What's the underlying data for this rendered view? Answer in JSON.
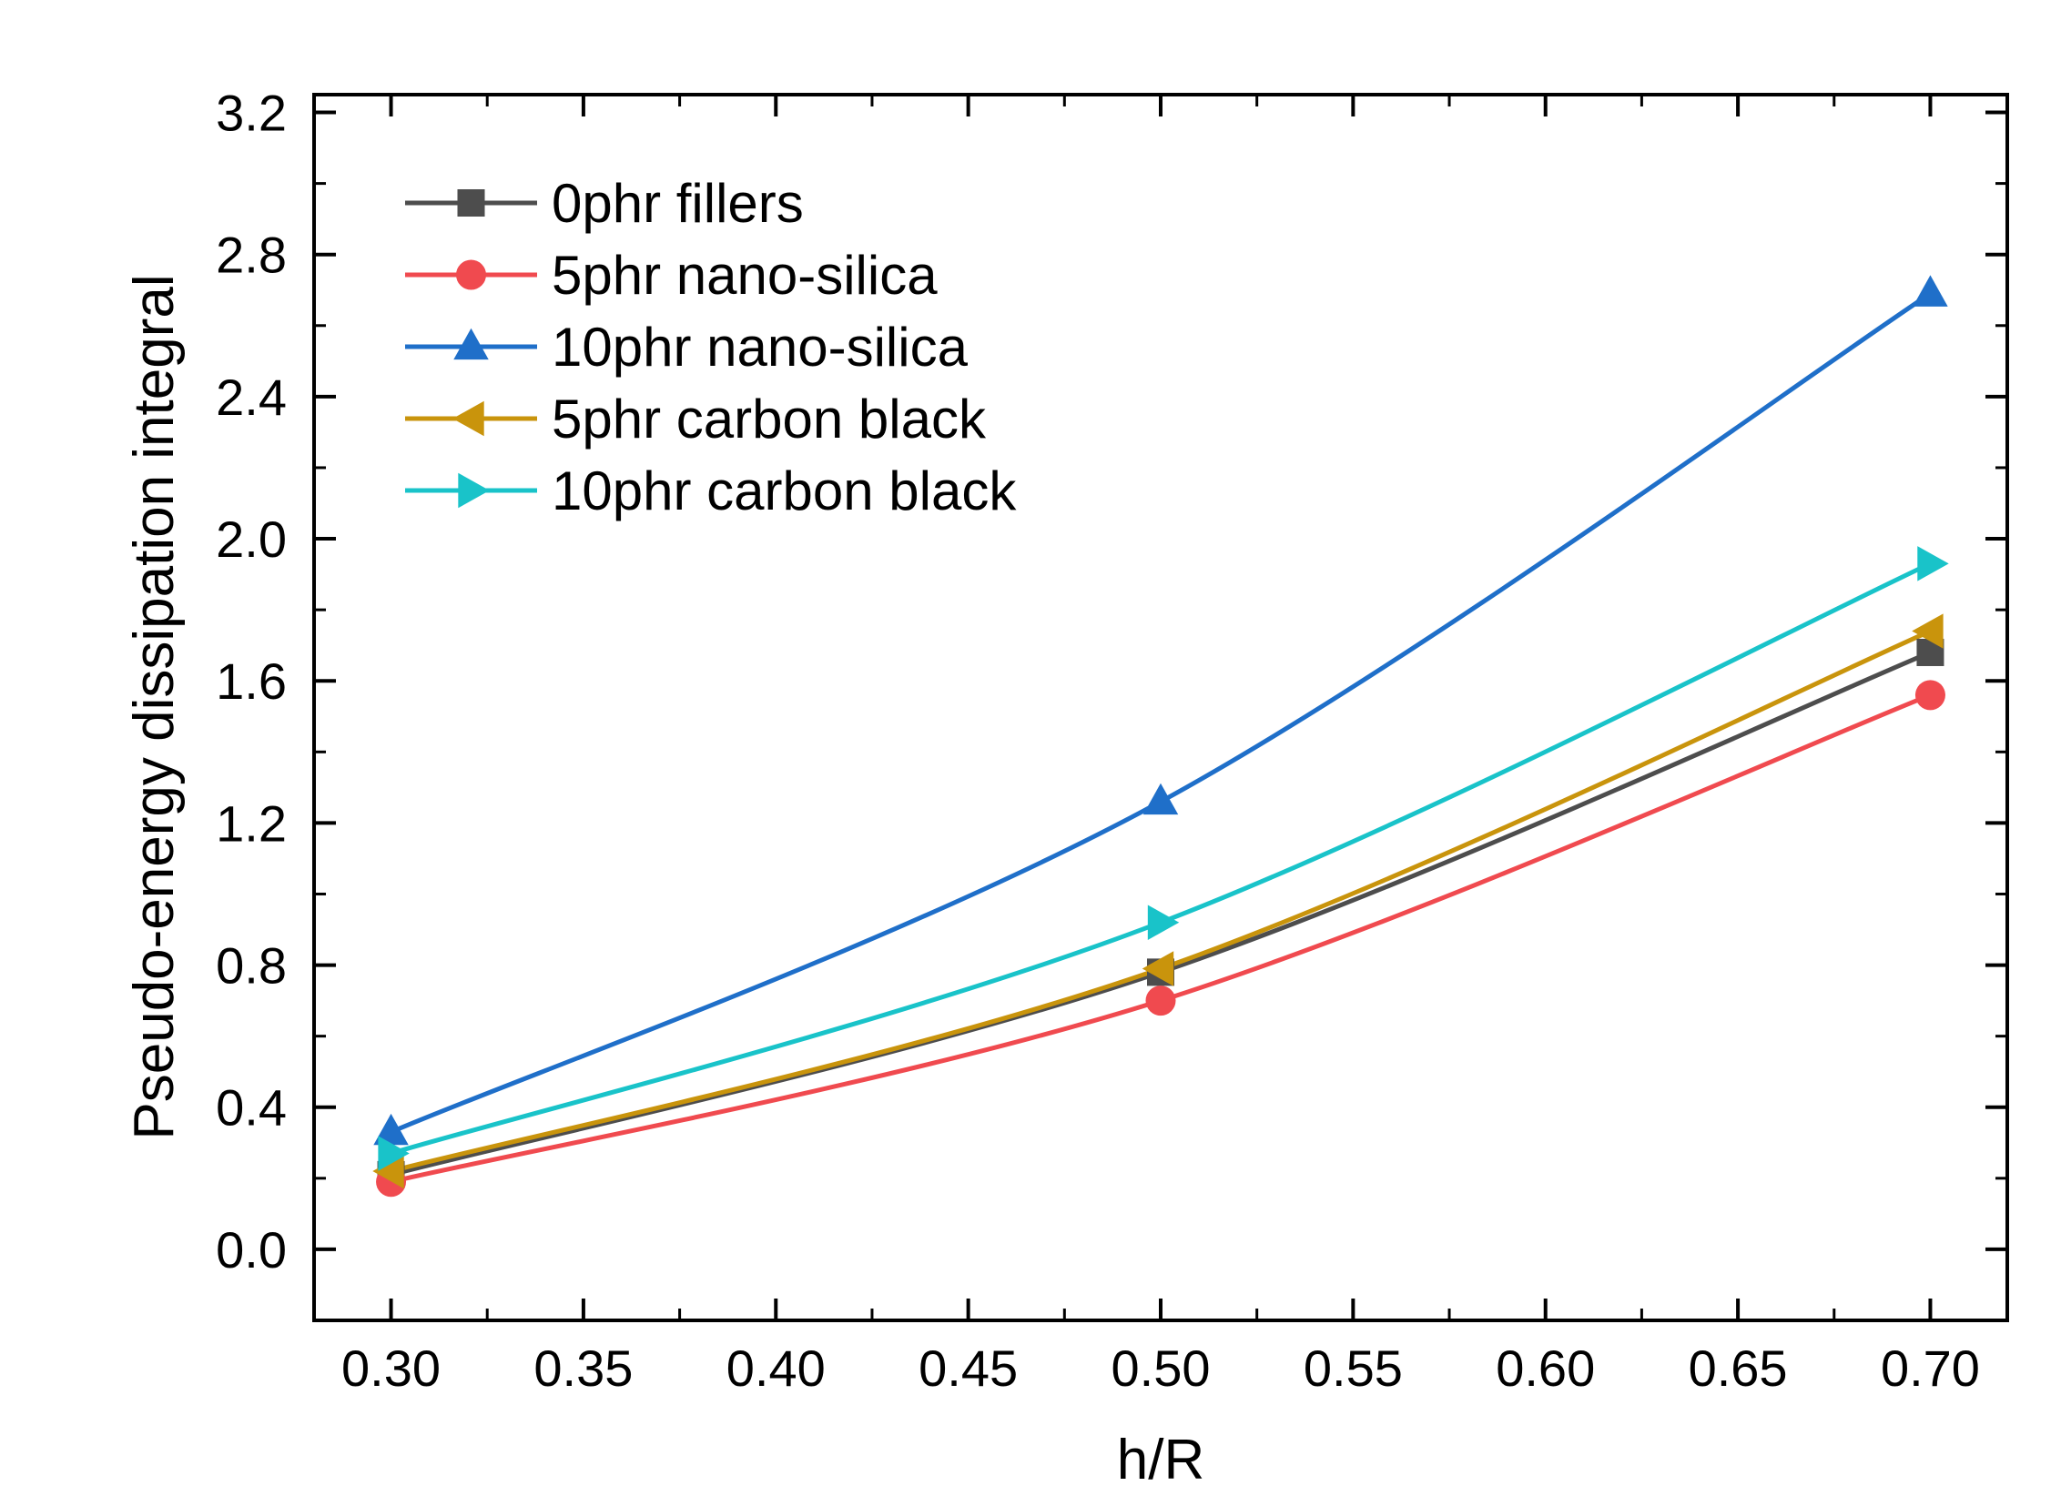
{
  "chart_data": {
    "type": "line",
    "title": "",
    "xlabel": "h/R",
    "ylabel": "Pseudo-energy dissipation integral",
    "xlim": [
      0.28,
      0.72
    ],
    "ylim": [
      -0.2,
      3.25
    ],
    "x_ticks": [
      "0.30",
      "0.35",
      "0.40",
      "0.45",
      "0.50",
      "0.55",
      "0.60",
      "0.65",
      "0.70"
    ],
    "y_ticks": [
      "0.0",
      "0.4",
      "0.8",
      "1.2",
      "1.6",
      "2.0",
      "2.4",
      "2.8",
      "3.2"
    ],
    "grid": false,
    "legend_position": "top-left",
    "x": [
      0.3,
      0.5,
      0.7
    ],
    "series": [
      {
        "name": "0phr fillers",
        "color": "#4d4d4d",
        "marker": "square",
        "values": [
          0.21,
          0.78,
          1.68
        ]
      },
      {
        "name": "5phr nano-silica",
        "color": "#f04a4f",
        "marker": "circle",
        "values": [
          0.19,
          0.7,
          1.56
        ]
      },
      {
        "name": "10phr nano-silica",
        "color": "#1f6fc9",
        "marker": "triangle-up",
        "values": [
          0.33,
          1.26,
          2.69
        ]
      },
      {
        "name": "5phr carbon black",
        "color": "#c9940c",
        "marker": "triangle-left",
        "values": [
          0.22,
          0.79,
          1.74
        ]
      },
      {
        "name": "10phr carbon black",
        "color": "#19c3c9",
        "marker": "triangle-right",
        "values": [
          0.27,
          0.92,
          1.93
        ]
      }
    ]
  }
}
